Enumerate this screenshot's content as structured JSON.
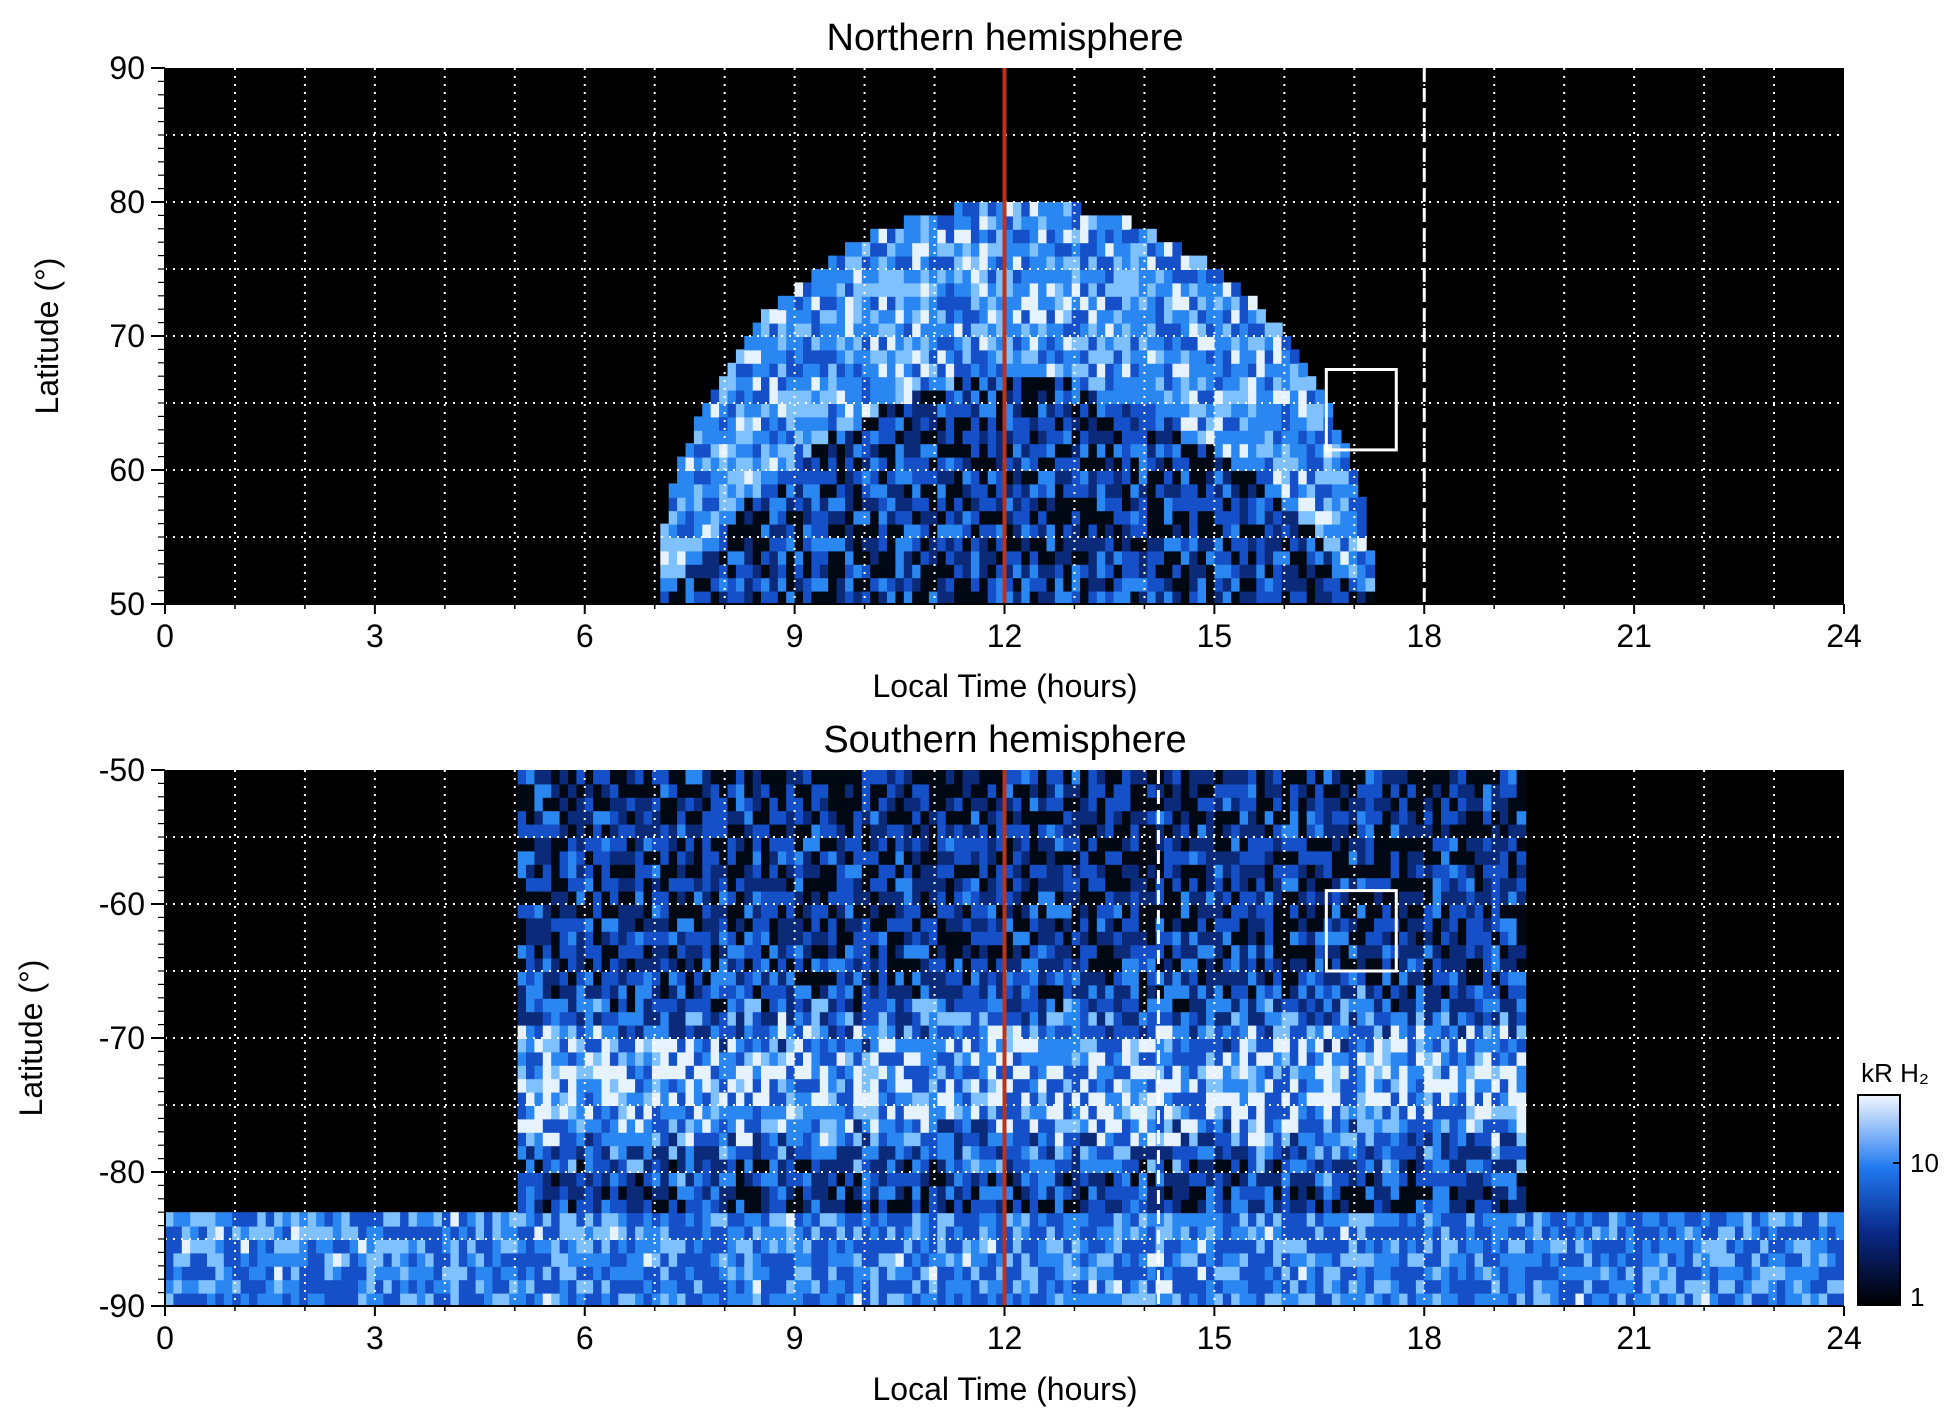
{
  "colors": {
    "background_plot": "#000000",
    "aurora_low": "#0a1e5a",
    "aurora_mid": "#1f6ff0",
    "aurora_high": "#e8f4ff",
    "noon_line": "#c0301a",
    "grid": "#ffffff",
    "box": "#ffffff"
  },
  "colorbar": {
    "label": "kR H₂",
    "scale": "log",
    "ticks": [
      "1",
      "10"
    ],
    "range": [
      1,
      30
    ]
  },
  "chart_data": [
    {
      "type": "heatmap",
      "title": "Northern hemisphere",
      "xlabel": "Local Time (hours)",
      "ylabel": "Latitude (°)",
      "xlim": [
        0,
        24
      ],
      "ylim": [
        50,
        90
      ],
      "xticks": [
        "0",
        "3",
        "6",
        "9",
        "12",
        "15",
        "18",
        "21",
        "24"
      ],
      "yticks": [
        "50",
        "60",
        "70",
        "80",
        "90"
      ],
      "grid": true,
      "noon_line_lt": 12,
      "dashed_line_lt": 18,
      "box": {
        "lt": [
          16.6,
          17.6
        ],
        "lat": [
          61.5,
          67.5
        ]
      },
      "auroral_oval": {
        "lt_range": [
          7.0,
          17.2
        ],
        "peak_lat": 79.5,
        "inner_edge_lat": 68.5
      }
    },
    {
      "type": "heatmap",
      "title": "Southern hemisphere",
      "xlabel": "Local Time (hours)",
      "ylabel": "Latitude (°)",
      "xlim": [
        0,
        24
      ],
      "ylim": [
        -90,
        -50
      ],
      "xticks": [
        "0",
        "3",
        "6",
        "9",
        "12",
        "15",
        "18",
        "21",
        "24"
      ],
      "yticks": [
        "-50",
        "-60",
        "-70",
        "-80",
        "-90"
      ],
      "grid": true,
      "noon_line_lt": 12,
      "dashed_line_lt": 14.2,
      "box": {
        "lt": [
          16.6,
          17.6
        ],
        "lat": [
          -65,
          -59
        ]
      },
      "auroral_oval": {
        "lt_range": [
          5.5,
          19.0
        ],
        "peak_lat": -74
      }
    }
  ]
}
